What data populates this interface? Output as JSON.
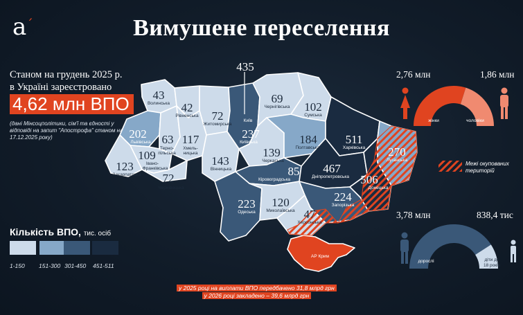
{
  "header": {
    "logo": "a",
    "title": "Вимушене переселення"
  },
  "intro": {
    "line1": "Станом на грудень 2025 р.",
    "line2": "в Україні зареєстровано",
    "total": "4,62 млн ВПО",
    "source": "(дані Мінсоцполітики, сім'ї та єдності у відповіді на запит \"Апострофа\" станом на 17.12.2025 року)"
  },
  "legend": {
    "title": "Кількість ВПО,",
    "unit": "тис. осіб",
    "ranges": [
      {
        "label": "1-150",
        "color": "#cddbea"
      },
      {
        "label": "151-300",
        "color": "#86a8c8"
      },
      {
        "label": "301-450",
        "color": "#3a5878"
      },
      {
        "label": "451-511",
        "color": "#1a2b40"
      }
    ]
  },
  "occupied_label": "Межі окупованих територій",
  "crimea_label": "АР Крим",
  "regions": [
    {
      "name": "Волинська",
      "value": "43"
    },
    {
      "name": "Рівненська",
      "value": "42"
    },
    {
      "name": "Житомирська",
      "value": "72"
    },
    {
      "name": "Київська",
      "value": "237"
    },
    {
      "name": "",
      "value": "435"
    },
    {
      "name": "Чернігівська",
      "value": "69"
    },
    {
      "name": "Сумська",
      "value": "102"
    },
    {
      "name": "Львівська",
      "value": "202"
    },
    {
      "name": "Терно-пільська",
      "value": "63"
    },
    {
      "name": "Хмель-ницька",
      "value": "117"
    },
    {
      "name": "Івано-Франківська",
      "value": "109"
    },
    {
      "name": "Закарпатська",
      "value": "123"
    },
    {
      "name": "Чернівецька",
      "value": "72"
    },
    {
      "name": "Вінницька",
      "value": "143"
    },
    {
      "name": "Черкаська",
      "value": "139"
    },
    {
      "name": "Полтавська",
      "value": "184"
    },
    {
      "name": "Харківська",
      "value": "511"
    },
    {
      "name": "Кіровоградська",
      "value": "85"
    },
    {
      "name": "Дніпропетровська",
      "value": "467"
    },
    {
      "name": "Луганська",
      "value": "270"
    },
    {
      "name": "Донецька",
      "value": "506"
    },
    {
      "name": "Запорізька",
      "value": "224"
    },
    {
      "name": "Миколаївська",
      "value": "120"
    },
    {
      "name": "Одеська",
      "value": "223"
    },
    {
      "name": "Херсонська",
      "value": "47"
    }
  ],
  "gender": {
    "women_value": "2,76 млн",
    "men_value": "1,86 млн",
    "women_label": "жінки",
    "men_label": "чоловіки",
    "women_share": 0.597
  },
  "age": {
    "adults_value": "3,78 млн",
    "children_value": "838,4 тис",
    "adults_label": "дорослі",
    "children_label": "діти до 18 років",
    "adults_share": 0.818
  },
  "footnote": {
    "line1": "у 2025 році на виплати ВПО передбачено 31,8 млрд грн",
    "line2": "у 2026 році закладено – 39,6 млрд грн"
  },
  "colors": {
    "accent": "#e04420",
    "accent_light": "#f08a70",
    "tier1": "#cddbea",
    "tier2": "#86a8c8",
    "tier3": "#3a5878",
    "tier4": "#1a2b40",
    "background": "#111c29"
  }
}
